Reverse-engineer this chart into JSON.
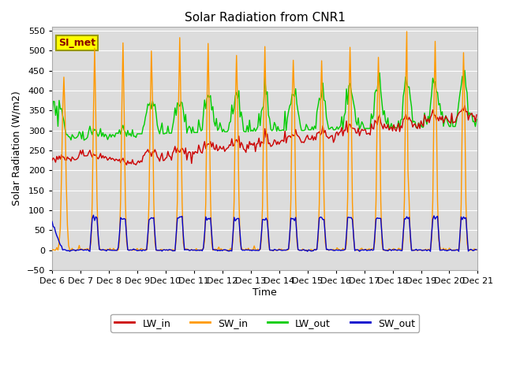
{
  "title": "Solar Radiation from CNR1",
  "ylabel": "Solar Radiation (W/m2)",
  "xlabel": "Time",
  "ylim": [
    -50,
    560
  ],
  "yticks": [
    -50,
    0,
    50,
    100,
    150,
    200,
    250,
    300,
    350,
    400,
    450,
    500,
    550
  ],
  "bg_color": "#dcdcdc",
  "fig_color": "#ffffff",
  "legend_entries": [
    "LW_in",
    "SW_in",
    "LW_out",
    "SW_out"
  ],
  "line_colors": [
    "#cc0000",
    "#ff9900",
    "#00cc00",
    "#0000cc"
  ],
  "station_label": "SI_met",
  "station_box_facecolor": "#ffff00",
  "station_box_edgecolor": "#999900",
  "station_text_color": "#880000",
  "grid_color": "#ffffff",
  "n_days": 15,
  "hours_per_day": 24,
  "figsize": [
    6.4,
    4.8
  ],
  "dpi": 100
}
